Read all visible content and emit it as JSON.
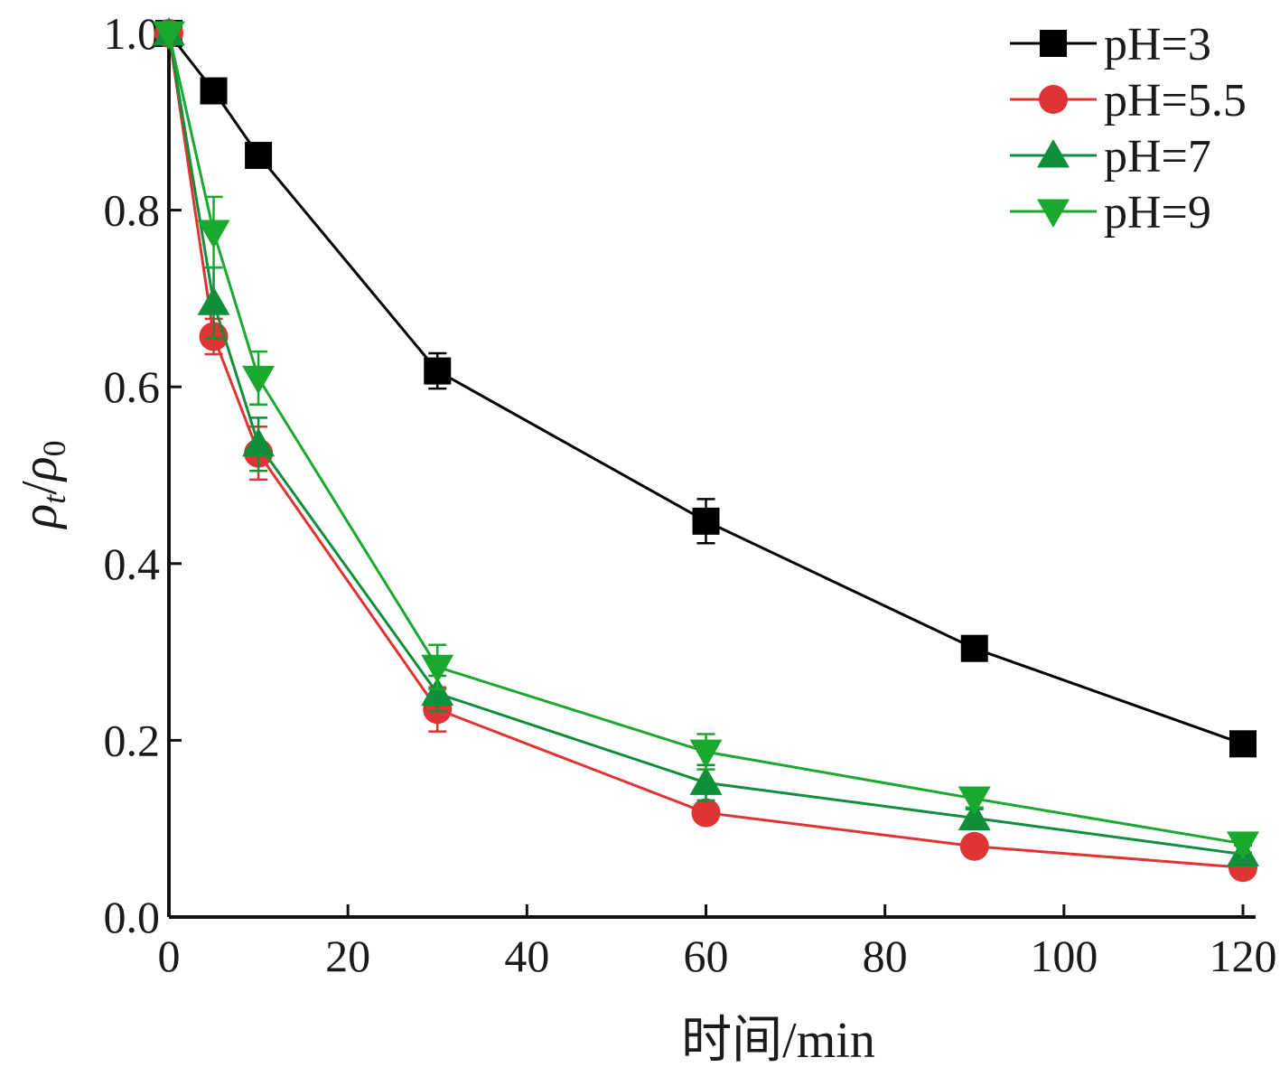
{
  "chart_data": {
    "type": "line",
    "xlabel": "时间/min",
    "ylabel_base": "ρ",
    "ylabel_sub_t": "t",
    "ylabel_slash": "/",
    "ylabel_sub_0": "0",
    "xlim": [
      0,
      120
    ],
    "ylim": [
      0,
      1.0
    ],
    "xticks": [
      0,
      20,
      40,
      60,
      80,
      100,
      120
    ],
    "xtick_labels": [
      "0",
      "20",
      "40",
      "60",
      "80",
      "100",
      "120"
    ],
    "yticks": [
      0,
      0.2,
      0.4,
      0.6,
      0.8,
      1.0
    ],
    "ytick_labels": [
      "0.0",
      "0.2",
      "0.4",
      "0.6",
      "0.8",
      "1.0"
    ],
    "legend_position": "top-right",
    "x": [
      0,
      5,
      10,
      30,
      60,
      90,
      120
    ],
    "series": [
      {
        "name": "pH=3",
        "marker": "square",
        "color": "#000000",
        "values": [
          1.0,
          0.935,
          0.862,
          0.618,
          0.448,
          0.304,
          0.196
        ],
        "errors": [
          0,
          0,
          0,
          0.02,
          0.025,
          0,
          0
        ]
      },
      {
        "name": "pH=5.5",
        "marker": "circle",
        "color": "#e03333",
        "values": [
          1.0,
          0.657,
          0.525,
          0.235,
          0.118,
          0.08,
          0.056
        ],
        "errors": [
          0,
          0.02,
          0.03,
          0.025,
          0.01,
          0,
          0.01
        ]
      },
      {
        "name": "pH=7",
        "marker": "triangle-up",
        "color": "#0f8f3a",
        "values": [
          1.0,
          0.695,
          0.535,
          0.253,
          0.152,
          0.112,
          0.071
        ],
        "errors": [
          0,
          0.04,
          0.03,
          0.02,
          0.02,
          0.01,
          0.01
        ]
      },
      {
        "name": "pH=9",
        "marker": "triangle-down",
        "color": "#1aa82e",
        "values": [
          1.0,
          0.775,
          0.61,
          0.283,
          0.187,
          0.134,
          0.083
        ],
        "errors": [
          0,
          0.04,
          0.03,
          0.025,
          0.02,
          0.01,
          0.01
        ]
      }
    ]
  }
}
